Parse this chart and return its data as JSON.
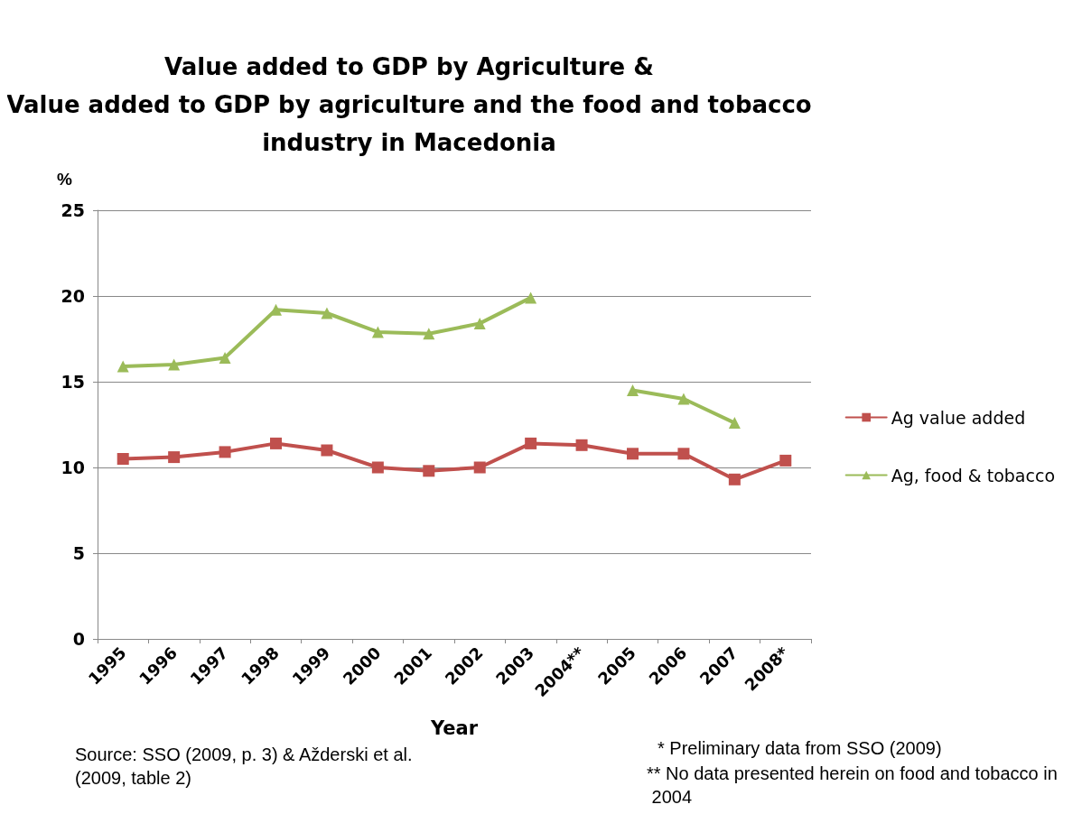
{
  "chart_data": {
    "type": "line",
    "title": "Value added to GDP by Agriculture &\nValue added to GDP by agriculture and the food and tobacco\nindustry in Macedonia",
    "xlabel": "Year",
    "ylabel": "%",
    "categories": [
      "1995",
      "1996",
      "1997",
      "1998",
      "1999",
      "2000",
      "2001",
      "2002",
      "2003",
      "2004**",
      "2005",
      "2006",
      "2007",
      "2008*"
    ],
    "series": [
      {
        "name": "Ag value added",
        "color": "#c0504d",
        "marker": "square",
        "values": [
          10.5,
          10.6,
          10.9,
          11.4,
          11.0,
          10.0,
          9.8,
          10.0,
          11.4,
          11.3,
          10.8,
          10.8,
          9.3,
          10.4
        ]
      },
      {
        "name": "Ag, food & tobacco",
        "color": "#9bbb59",
        "marker": "triangle",
        "values": [
          15.9,
          16.0,
          16.4,
          19.2,
          19.0,
          17.9,
          17.8,
          18.4,
          19.9,
          null,
          14.5,
          14.0,
          12.6,
          null
        ]
      }
    ],
    "ylim": [
      0,
      25
    ],
    "yticks": [
      0,
      5,
      10,
      15,
      20,
      25
    ],
    "grid": "y",
    "legend": "right",
    "annotations": [
      "Source: SSO (2009, p. 3) & Ažderski et al. (2009, table 2)",
      "* Preliminary data from SSO (2009)",
      "** No data presented herein on food and tobacco in 2004"
    ]
  }
}
